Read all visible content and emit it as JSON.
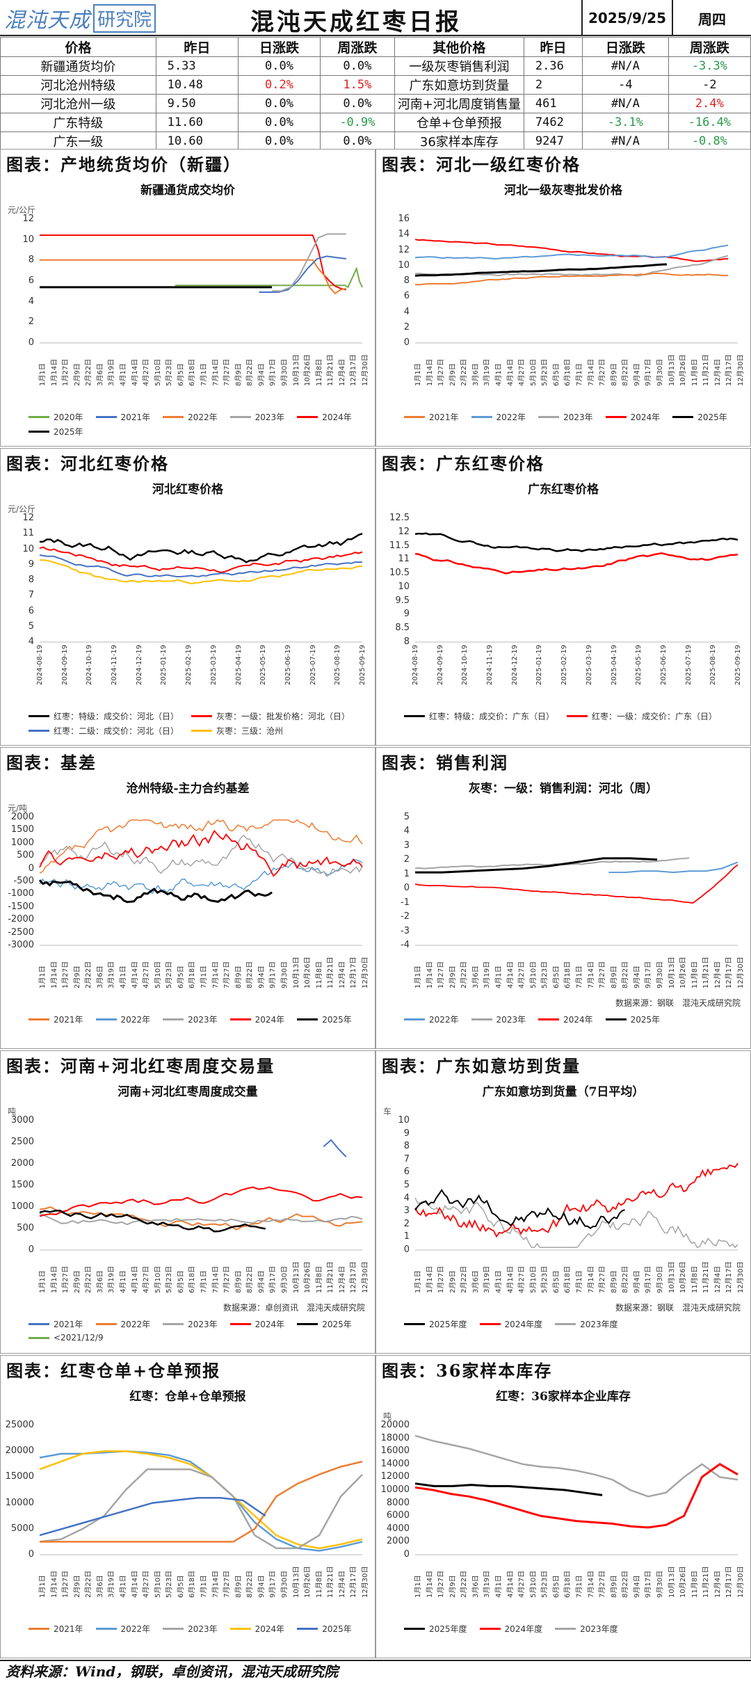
{
  "header": {
    "logo_text": "混沌天成",
    "logo_box": "研究院",
    "title": "混沌天成红枣日报",
    "date": "2025/9/25",
    "weekday": "周四"
  },
  "price_table": {
    "headers": [
      "价格",
      "昨日",
      "日涨跌",
      "周涨跌",
      "其他价格",
      "昨日",
      "日涨跌",
      "周涨跌"
    ],
    "rows": [
      {
        "name": "新疆通货均价",
        "prev": "5.33",
        "day": "0.0%",
        "week": "0.0%",
        "oname": "一级灰枣销售利润",
        "oprev": "2.36",
        "oday": "#N/A",
        "oweek": "-3.3%",
        "day_c": "",
        "week_c": "",
        "oday_c": "",
        "oweek_c": "green"
      },
      {
        "name": "河北沧州特级",
        "prev": "10.48",
        "day": "0.2%",
        "week": "1.5%",
        "oname": "广东如意坊到货量",
        "oprev": "2",
        "oday": "-4",
        "oweek": "-2",
        "day_c": "red",
        "week_c": "red",
        "oday_c": "",
        "oweek_c": ""
      },
      {
        "name": "河北沧州一级",
        "prev": "9.50",
        "day": "0.0%",
        "week": "0.0%",
        "oname": "河南+河北周度销售量",
        "oprev": "461",
        "oday": "#N/A",
        "oweek": "2.4%",
        "day_c": "",
        "week_c": "",
        "oday_c": "",
        "oweek_c": "red"
      },
      {
        "name": "广东特级",
        "prev": "11.60",
        "day": "0.0%",
        "week": "-0.9%",
        "oname": "仓单+仓单预报",
        "oprev": "7462",
        "oday": "-3.1%",
        "oweek": "-16.4%",
        "day_c": "",
        "week_c": "green",
        "oday_c": "green",
        "oweek_c": "green"
      },
      {
        "name": "广东一级",
        "prev": "10.60",
        "day": "0.0%",
        "week": "0.0%",
        "oname": "36家样本库存",
        "oprev": "9247",
        "oday": "#N/A",
        "oweek": "-0.8%",
        "day_c": "",
        "week_c": "",
        "oday_c": "",
        "oweek_c": "green"
      }
    ]
  },
  "sections": {
    "s1": "图表：产地统货均价（新疆）",
    "s2": "图表：河北一级红枣价格",
    "s3": "图表：河北红枣价格",
    "s4": "图表：广东红枣价格",
    "s5": "图表：基差",
    "s6": "图表：销售利润",
    "s7": "图表：河南+河北红枣周度交易量",
    "s8": "图表：广东如意坊到货量",
    "s9": "图表：红枣仓单+仓单预报",
    "s10": "图表：36家样本库存"
  },
  "colors": {
    "y2020": "#70ad47",
    "y2021": "#4472c4",
    "y2022": "#ed7d31",
    "y2023": "#a5a5a5",
    "y2024": "#ff0000",
    "y2025": "#000000",
    "c2021": "#ed7d31",
    "c2022": "#5b9bd5",
    "c2023": "#a5a5a5",
    "c2024": "#ff0000",
    "c2025": "#000000",
    "gold": "#ffc000",
    "blue": "#4472c4"
  },
  "charts": {
    "c1": {
      "title": "新疆通货成交均价",
      "unit": "元/公斤",
      "yticks": [
        "12",
        "10",
        "8",
        "6",
        "4",
        "2",
        "0"
      ],
      "legend": [
        "2020年",
        "2021年",
        "2022年",
        "2023年",
        "2024年",
        "2025年"
      ]
    },
    "c2": {
      "title": "河北一级灰枣批发价格",
      "unit": "",
      "yticks": [
        "16",
        "14",
        "12",
        "10",
        "8",
        "6",
        "4",
        "2",
        "0"
      ],
      "legend": [
        "2021年",
        "2022年",
        "2023年",
        "2024年",
        "2025年"
      ]
    },
    "c3": {
      "title": "河北红枣价格",
      "unit": "元/公斤",
      "yticks": [
        "12",
        "11",
        "10",
        "9",
        "8",
        "7",
        "6",
        "5",
        "4"
      ],
      "xticks": [
        "2024-08-19",
        "2024-09-19",
        "2024-10-19",
        "2024-11-19",
        "2024-12-19",
        "2025-01-19",
        "2025-02-19",
        "2025-03-19",
        "2025-04-19",
        "2025-05-19",
        "2025-06-19",
        "2025-07-19",
        "2025-08-19",
        "2025-09-19"
      ],
      "legend": [
        "红枣：特级：成交价：河北（日）",
        "灰枣：一级：批发价格：河北（日）",
        "红枣：二级：成交价：河北（日）",
        "灰枣：三级：沧州"
      ]
    },
    "c4": {
      "title": "广东红枣价格",
      "unit": "",
      "yticks": [
        "12.5",
        "12",
        "11.5",
        "11",
        "10.5",
        "10",
        "9.5",
        "9",
        "8.5",
        "8"
      ],
      "xticks": [
        "2024-08-19",
        "2024-09-19",
        "2024-10-19",
        "2024-11-19",
        "2024-12-19",
        "2025-01-19",
        "2025-02-19",
        "2025-03-19",
        "2025-04-19",
        "2025-05-19",
        "2025-06-19",
        "2025-07-19",
        "2025-08-19",
        "2025-09-19"
      ],
      "legend": [
        "红枣：特级：成交价：广东（日）",
        "红枣：一级：成交价：广东（日）"
      ]
    },
    "c5": {
      "title": "沧州特级-主力合约基差",
      "unit": "元/吨",
      "yticks": [
        "2000",
        "1500",
        "1000",
        "500",
        "0",
        "-500",
        "-1000",
        "-1500",
        "-2000",
        "-2500",
        "-3000"
      ],
      "legend": [
        "2021年",
        "2022年",
        "2023年",
        "2024年",
        "2025年"
      ]
    },
    "c6": {
      "title": "灰枣：一级：销售利润：河北（周）",
      "unit": "",
      "yticks": [
        "5",
        "4",
        "3",
        "2",
        "1",
        "0",
        "-1",
        "-2",
        "-3",
        "-4"
      ],
      "legend": [
        "2022年",
        "2023年",
        "2024年",
        "2025年"
      ],
      "source": "数据来源：钢联　混沌天成研究院"
    },
    "c7": {
      "title": "河南+河北红枣周度成交量",
      "unit": "吨",
      "yticks": [
        "3000",
        "2500",
        "2000",
        "1500",
        "1000",
        "500",
        "0"
      ],
      "legend": [
        "2021年",
        "2022年",
        "2023年",
        "2024年",
        "2025年",
        "<2021/12/9"
      ],
      "source": "数据来源：卓创资讯　混沌天成研究院"
    },
    "c8": {
      "title": "广东如意坊到货量（7日平均）",
      "unit": "车",
      "yticks": [
        "10",
        "9",
        "8",
        "7",
        "6",
        "5",
        "4",
        "3",
        "2",
        "1",
        "0"
      ],
      "legend": [
        "2025年度",
        "2024年度",
        "2023年度"
      ],
      "source": "数据来源：钢联　混沌天成研究院"
    },
    "c9": {
      "title": "红枣：仓单+仓单预报",
      "unit": "",
      "yticks": [
        "25000",
        "20000",
        "15000",
        "10000",
        "5000",
        "0"
      ],
      "legend": [
        "2021年",
        "2022年",
        "2023年",
        "2024年",
        "2025年"
      ]
    },
    "c10": {
      "title": "红枣：36家样本企业库存",
      "unit": "吨",
      "yticks": [
        "20000",
        "18000",
        "16000",
        "14000",
        "12000",
        "10000",
        "8000",
        "6000",
        "4000",
        "2000",
        "0"
      ],
      "legend": [
        "2025年度",
        "2024年度",
        "2023年度"
      ]
    }
  },
  "date_ticks": [
    "1月1日",
    "1月14日",
    "1月27日",
    "2月9日",
    "2月22日",
    "3月6日",
    "3月19日",
    "4月1日",
    "4月14日",
    "4月27日",
    "5月10日",
    "5月23日",
    "6月5日",
    "6月18日",
    "7月1日",
    "7月14日",
    "7月27日",
    "8月9日",
    "8月22日",
    "9月4日",
    "9月17日",
    "9月30日",
    "10月13日",
    "10月26日",
    "11月8日",
    "11月21日",
    "12月4日",
    "12月17日",
    "12月30日"
  ],
  "footer": "资料来源：Wind，钢联，卓创资讯，混沌天成研究院"
}
